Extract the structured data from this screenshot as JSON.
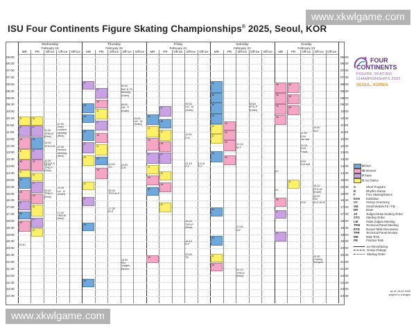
{
  "banner_top": "www.xkwlgame.com",
  "banner_bottom": "www.xkwlgame.com",
  "title_main": "ISU Four Continents Figure Skating Championships",
  "title_reg": "®",
  "title_rest": " 2025, Seoul, KOR",
  "logo": {
    "line1": "FOUR",
    "line2": "CONTINENTS",
    "line3": "FIGURE SKATING",
    "line4": "CHAMPIONSHIPS 2025",
    "line5": "SEOUL, KOREA"
  },
  "days": [
    {
      "name": "Wednesday",
      "date": "February 19"
    },
    {
      "name": "Thursday",
      "date": "February 20"
    },
    {
      "name": "Friday",
      "date": "February 21"
    },
    {
      "name": "Saturday",
      "date": "February 22"
    },
    {
      "name": "Sunday",
      "date": "February 23"
    }
  ],
  "col_labels": [
    "MR",
    "PR",
    "Off-ice",
    "Off-ice",
    "Off-ice"
  ],
  "times": [
    "06:00",
    "06:30",
    "07:00",
    "07:30",
    "08:00",
    "08:30",
    "09:00",
    "09:30",
    "10:00",
    "10:30",
    "11:00",
    "11:30",
    "12:00",
    "12:30",
    "13:00",
    "13:30",
    "14:00",
    "14:30",
    "15:00",
    "15:30",
    "16:00",
    "16:30",
    "17:00",
    "17:30",
    "18:00",
    "18:30",
    "19:00",
    "19:30",
    "20:00",
    "20:30",
    "21:00",
    "21:30",
    "22:00",
    "22:30",
    "23:00",
    "23:30"
  ],
  "colors": {
    "men": "#6fa8dc",
    "women": "#f4a6c4",
    "pairs": "#c9a2e3",
    "dance": "#fff06a",
    "other": "#e8e8e8"
  },
  "legend_colors": [
    {
      "code": "M",
      "label": "Men"
    },
    {
      "code": "W",
      "label": "Women"
    },
    {
      "code": "P",
      "label": "Pairs"
    },
    {
      "code": "D",
      "label": "Ice Dance"
    }
  ],
  "legend_abbr": [
    {
      "code": "S",
      "label": "Short Program"
    },
    {
      "code": "R",
      "label": "Rhythm Dance"
    },
    {
      "code": "F",
      "label": "Free Skating/Dance"
    },
    {
      "code": "EXH",
      "label": "Exhibition"
    },
    {
      "code": "VC",
      "label": "Victory Ceremony"
    },
    {
      "code": "SM",
      "label": "Small Medals FS / FD"
    },
    {
      "code": "DR",
      "label": "Draw"
    },
    {
      "code": "JS",
      "label": "Judges Draw Seating Order"
    },
    {
      "code": "STO",
      "label": "Starting Order"
    },
    {
      "code": "LM",
      "label": "Initial Judges Meeting"
    },
    {
      "code": "TPM",
      "label": "Technical Panel Meeting"
    },
    {
      "code": "RTD",
      "label": "Round Table Discussion"
    },
    {
      "code": "TPR",
      "label": "Technical Panel Review"
    },
    {
      "code": "MR",
      "label": "Main Rink"
    },
    {
      "code": "PR",
      "label": "Practice Rink"
    }
  ],
  "legend_lines": [
    {
      "label": "Ice Resurfacing"
    },
    {
      "label": "Group Change"
    },
    {
      "label": "Starting Order"
    }
  ],
  "footnote1": "as of: 14.02.2025",
  "footnote2": "subject to changes",
  "events": [
    {
      "text": "15:30\nLM - D\n(Hotel)"
    },
    {
      "text": "11:00\nTPM-W\n(Rink)"
    },
    {
      "text": "10:30\nTeam\nLeaders\nMeeting\n(Rink)"
    },
    {
      "text": "12:30\nMedical\nMeeting\n(Rink)"
    },
    {
      "text": "12:00\nSTO D-R"
    },
    {
      "text": "12:30\nSTO P-S"
    },
    {
      "text": "13:45\nTPM-P\n(Rink)"
    },
    {
      "text": "15:45\nTPM-D\n(Rink)"
    },
    {
      "text": "17:00\nTPM-M\n(Rink)"
    },
    {
      "text": "09:00\nRef. & TC\nMeeting\n(Hotel)"
    },
    {
      "text": "09:30\nLM - P\n(Hotel)"
    },
    {
      "text": "11:00\nLM - W\n(Hotel)"
    },
    {
      "text": "19:30\nISU\nJudges\nDinner"
    },
    {
      "text": "14:00\nOC"
    },
    {
      "text": "14:30\nD-R"
    },
    {
      "text": "16:30\nSTO M-S"
    },
    {
      "text": "17:30\nM-S"
    },
    {
      "text": "09:30\nLM - M\n(Hotel)"
    },
    {
      "text": "11:30\nP-S"
    },
    {
      "text": "14:15\nP-F"
    },
    {
      "text": "14:15\nP-F"
    },
    {
      "text": "18:45\nTPR-P\n(Rink)"
    },
    {
      "text": "18:15\nD-F"
    },
    {
      "text": "20:45\nVC"
    },
    {
      "text": "12:15\nM-F"
    },
    {
      "text": "17:45\nD-F"
    },
    {
      "text": "21:15\nTPR-D\n(Rink)"
    },
    {
      "text": "09:00\nRTD-P\n(Hotel)"
    },
    {
      "text": "11:30\nEXH\n1st half"
    },
    {
      "text": "12:15\nEXH\nFinals"
    },
    {
      "text": "EXH\n2nd half"
    },
    {
      "text": "20:30\nClosing\nBanquet"
    },
    {
      "text": "10:40\nW-F"
    },
    {
      "text": "15:10\nRTD-W\n(Hotel)"
    },
    {
      "text": "16:00\nSM\nM-D-W-W"
    },
    {
      "text": "EXH"
    },
    {
      "text": "VC"
    },
    {
      "text": "VC"
    },
    {
      "text": "19:30"
    }
  ]
}
